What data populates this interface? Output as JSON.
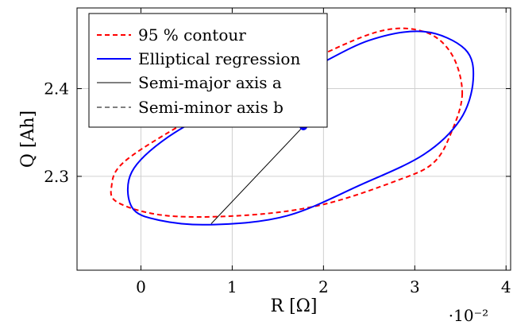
{
  "chart_data": {
    "type": "line",
    "xlabel": "R [Ω]",
    "ylabel": "Q [Ah]",
    "x_scale_label": "·10⁻²",
    "xlim": [
      -0.7,
      4.05
    ],
    "ylim": [
      2.193,
      2.492
    ],
    "x_ticks": [
      0,
      1,
      2,
      3,
      4
    ],
    "x_tick_labels": [
      "0",
      "1",
      "2",
      "3",
      "4"
    ],
    "y_ticks": [
      2.3,
      2.4
    ],
    "y_tick_labels": [
      "2.3",
      "2.4"
    ],
    "grid": true,
    "legend_position": "top-left",
    "legend": [
      {
        "label": "95 % contour",
        "color": "#ff0000",
        "style": "dashed"
      },
      {
        "label": "Elliptical regression",
        "color": "#0000ff",
        "style": "solid"
      },
      {
        "label": "Semi-major axis a",
        "color": "#000000",
        "style": "solid"
      },
      {
        "label": "Semi-minor axis b",
        "color": "#000000",
        "style": "dashed"
      }
    ],
    "series": [
      {
        "name": "95 % contour",
        "color": "#ff0000",
        "style": "dashed",
        "points": [
          [
            3.52,
            2.395
          ],
          [
            3.4,
            2.35
          ],
          [
            3.2,
            2.315
          ],
          [
            2.8,
            2.295
          ],
          [
            2.0,
            2.268
          ],
          [
            1.2,
            2.256
          ],
          [
            0.3,
            2.255
          ],
          [
            -0.25,
            2.27
          ],
          [
            -0.32,
            2.29
          ],
          [
            -0.2,
            2.315
          ],
          [
            0.3,
            2.35
          ],
          [
            1.0,
            2.39
          ],
          [
            1.8,
            2.43
          ],
          [
            2.6,
            2.465
          ],
          [
            3.1,
            2.465
          ],
          [
            3.4,
            2.44
          ],
          [
            3.52,
            2.395
          ]
        ]
      },
      {
        "name": "Elliptical regression",
        "color": "#0000ff",
        "style": "solid",
        "points": [
          [
            3.64,
            2.41
          ],
          [
            3.5,
            2.365
          ],
          [
            3.1,
            2.325
          ],
          [
            2.4,
            2.29
          ],
          [
            1.6,
            2.255
          ],
          [
            0.8,
            2.245
          ],
          [
            0.2,
            2.25
          ],
          [
            -0.1,
            2.265
          ],
          [
            -0.1,
            2.305
          ],
          [
            0.3,
            2.345
          ],
          [
            1.0,
            2.385
          ],
          [
            1.8,
            2.42
          ],
          [
            2.5,
            2.455
          ],
          [
            3.1,
            2.465
          ],
          [
            3.55,
            2.445
          ],
          [
            3.64,
            2.41
          ]
        ]
      },
      {
        "name": "Semi-major axis a",
        "color": "#000000",
        "style": "solid",
        "points": [
          [
            0.77,
            2.246
          ],
          [
            1.78,
            2.357
          ]
        ]
      },
      {
        "name": "Semi-minor axis b",
        "color": "#000000",
        "style": "dashed",
        "points": [
          [
            0.2,
            2.357
          ],
          [
            1.78,
            2.357
          ]
        ]
      }
    ],
    "center_point": {
      "x": 1.78,
      "y": 2.357,
      "color": "#0000ff"
    }
  }
}
